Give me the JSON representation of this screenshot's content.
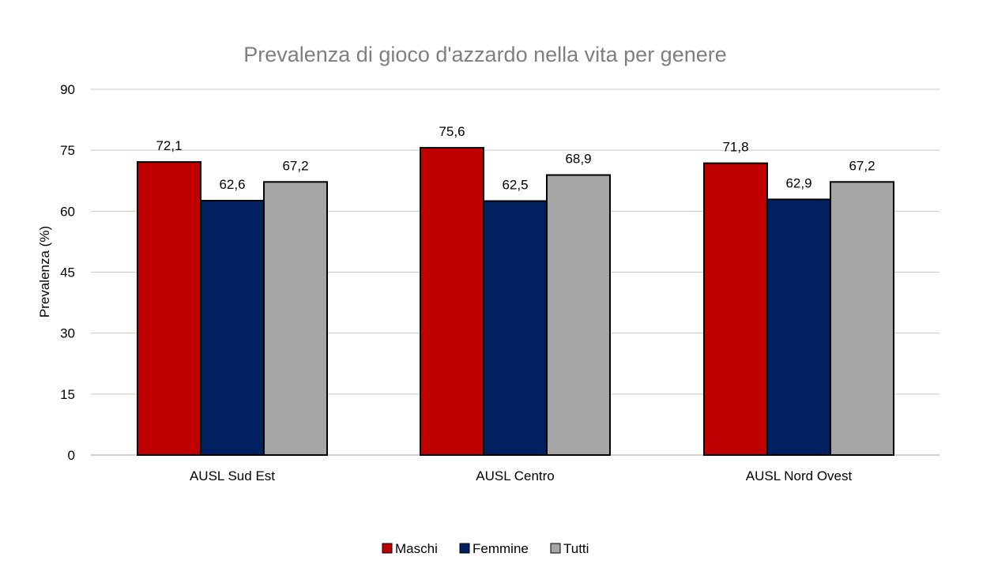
{
  "chart_data": {
    "type": "bar",
    "title": "Prevalenza di gioco d'azzardo nella vita per genere",
    "xlabel": "",
    "ylabel": "Prevalenza (%)",
    "ylim": [
      0,
      90
    ],
    "yticks": [
      0,
      15,
      30,
      45,
      60,
      75,
      90
    ],
    "grid": true,
    "legend_position": "bottom-center",
    "categories": [
      "AUSL Sud Est",
      "AUSL Centro",
      "AUSL Nord Ovest"
    ],
    "series": [
      {
        "name": "Maschi",
        "color": "#c00000",
        "values": [
          72.1,
          75.6,
          71.8
        ],
        "labels": [
          "72,1",
          "75,6",
          "71,8"
        ]
      },
      {
        "name": "Femmine",
        "color": "#002060",
        "values": [
          62.6,
          62.5,
          62.9
        ],
        "labels": [
          "62,6",
          "62,5",
          "62,9"
        ]
      },
      {
        "name": "Tutti",
        "color": "#a6a6a6",
        "values": [
          67.2,
          68.9,
          67.2
        ],
        "labels": [
          "67,2",
          "68,9",
          "67,2"
        ]
      }
    ]
  }
}
